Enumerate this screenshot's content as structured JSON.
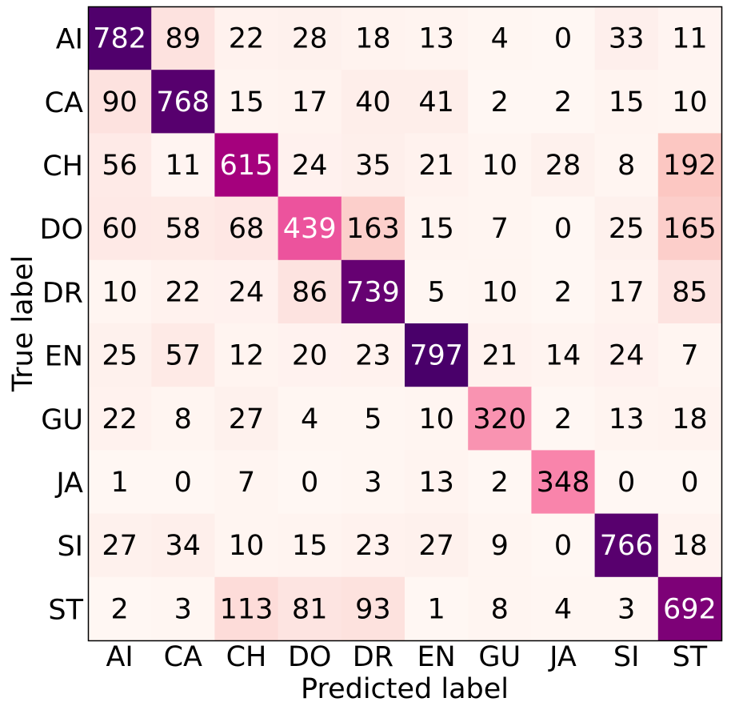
{
  "chart_data": {
    "type": "heatmap",
    "title": "",
    "xlabel": "Predicted label",
    "ylabel": "True label",
    "x_categories": [
      "AI",
      "CA",
      "CH",
      "DO",
      "DR",
      "EN",
      "GU",
      "JA",
      "SI",
      "ST"
    ],
    "y_categories": [
      "AI",
      "CA",
      "CH",
      "DO",
      "DR",
      "EN",
      "GU",
      "JA",
      "SI",
      "ST"
    ],
    "values": [
      [
        782,
        89,
        22,
        28,
        18,
        13,
        4,
        0,
        33,
        11
      ],
      [
        90,
        768,
        15,
        17,
        40,
        41,
        2,
        2,
        15,
        10
      ],
      [
        56,
        11,
        615,
        24,
        35,
        21,
        10,
        28,
        8,
        192
      ],
      [
        60,
        58,
        68,
        439,
        163,
        15,
        7,
        0,
        25,
        165
      ],
      [
        10,
        22,
        24,
        86,
        739,
        5,
        10,
        2,
        17,
        85
      ],
      [
        25,
        57,
        12,
        20,
        23,
        797,
        21,
        14,
        24,
        7
      ],
      [
        22,
        8,
        27,
        4,
        5,
        10,
        320,
        2,
        13,
        18
      ],
      [
        1,
        0,
        7,
        0,
        3,
        13,
        2,
        348,
        0,
        0
      ],
      [
        27,
        34,
        10,
        15,
        23,
        27,
        9,
        0,
        766,
        18
      ],
      [
        2,
        3,
        113,
        81,
        93,
        1,
        8,
        4,
        3,
        692
      ]
    ],
    "colormap": "RdPu",
    "value_range": [
      0,
      797
    ],
    "grid": false,
    "legend": "none",
    "colors": {
      "text_dark": "#000000",
      "text_light": "#ffffff",
      "frame": "#000000"
    }
  }
}
